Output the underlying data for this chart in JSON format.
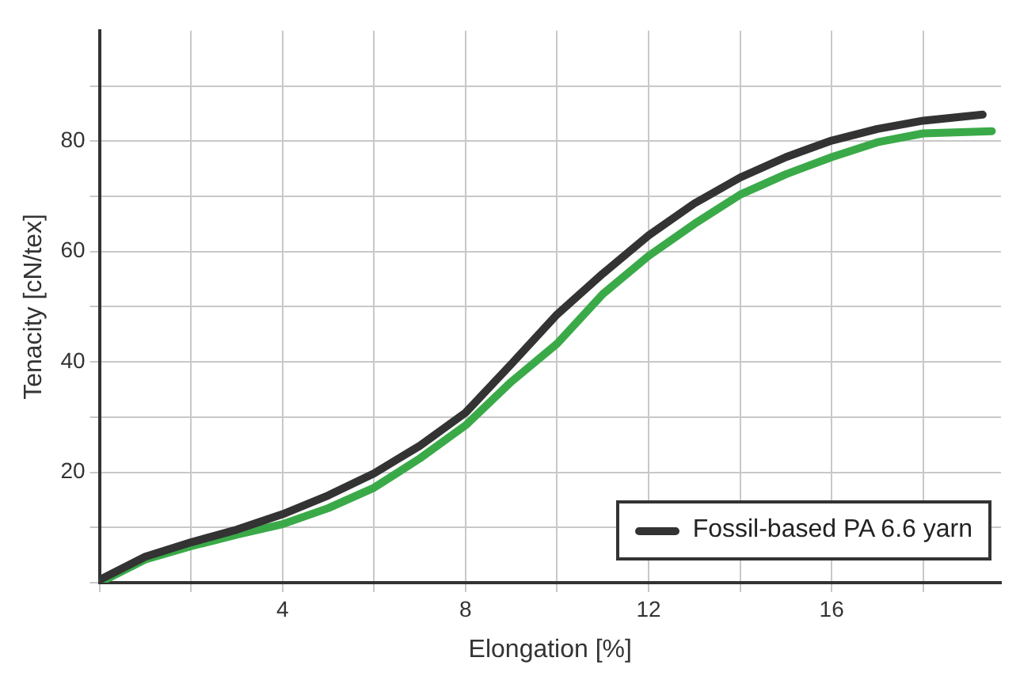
{
  "chart_data": {
    "type": "line",
    "xlabel": "Elongation [%]",
    "ylabel": "Tenacity [cN/tex]",
    "xlim": [
      0,
      19.7
    ],
    "ylim": [
      0,
      100
    ],
    "xticks": [
      {
        "value": 0,
        "label": null
      },
      {
        "value": 2,
        "label": null
      },
      4,
      {
        "value": 6,
        "label": null
      },
      8,
      {
        "value": 10,
        "label": null
      },
      12,
      {
        "value": 14,
        "label": null
      },
      16,
      {
        "value": 18,
        "label": null
      }
    ],
    "yticks": [
      {
        "value": 0,
        "label": null
      },
      {
        "value": 10,
        "label": null
      },
      20,
      {
        "value": 30,
        "label": null
      },
      40,
      {
        "value": 50,
        "label": null
      },
      60,
      {
        "value": 70,
        "label": null
      },
      80,
      {
        "value": 90,
        "label": null
      }
    ],
    "grid": true,
    "legend": "bottom right",
    "marker": "none",
    "line_style": "solid",
    "series": [
      {
        "name": "Fossil-based PA 6.6 yarn",
        "color": "#333333",
        "x": [
          0,
          1,
          2,
          3,
          4,
          5,
          6,
          7,
          8,
          9,
          10,
          11,
          12,
          13,
          14,
          15,
          16,
          17,
          18,
          19.3
        ],
        "values": [
          0.5,
          4.7,
          7.3,
          9.6,
          12.4,
          15.8,
          19.8,
          24.8,
          30.8,
          39.6,
          48.6,
          56,
          62.9,
          68.7,
          73.4,
          77.1,
          80.1,
          82.2,
          83.7,
          84.8
        ]
      },
      {
        "color": "#3aaa48",
        "x": [
          0,
          1,
          2,
          3,
          4,
          5,
          6,
          7,
          8,
          9,
          10,
          11,
          12,
          13,
          14,
          15,
          16,
          17,
          18,
          19.5
        ],
        "values": [
          0,
          4.2,
          6.6,
          8.7,
          10.6,
          13.5,
          17.2,
          22.5,
          28.5,
          36.4,
          43.3,
          52.3,
          59.2,
          65,
          70.3,
          74,
          77.1,
          79.8,
          81.4,
          81.8
        ]
      }
    ]
  }
}
